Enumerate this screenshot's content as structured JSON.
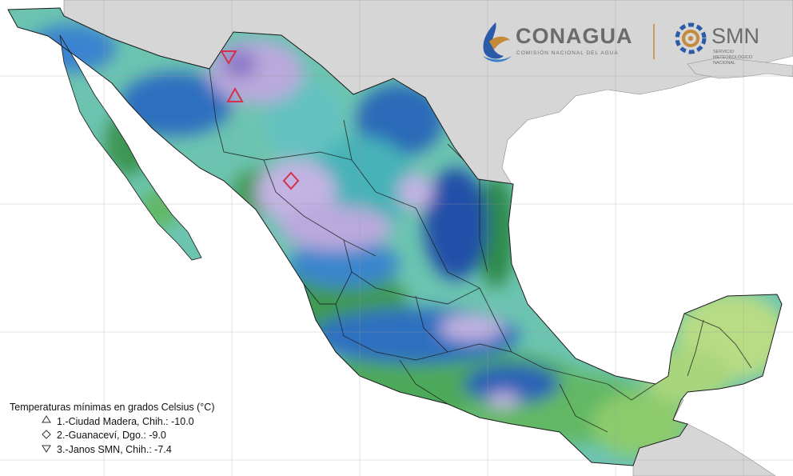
{
  "header": {
    "conagua_name": "CONAGUA",
    "conagua_sub": "COMISIÓN NACIONAL DEL AGUA",
    "smn_name": "SMN",
    "smn_sub_1": "SERVICIO",
    "smn_sub_2": "METEOROLÓGICO",
    "smn_sub_3": "NACIONAL"
  },
  "legend": {
    "title": "Temperaturas mínimas en grados Celsius (°C)",
    "items": [
      {
        "symbol": "triangle-up",
        "text": "1.-Ciudad Madera, Chih.: -10.0"
      },
      {
        "symbol": "diamond",
        "text": "2.-Guanaceví, Dgo.: -9.0"
      },
      {
        "symbol": "triangle-down",
        "text": "3.-Janos SMN, Chih.: -7.4"
      }
    ]
  },
  "colors": {
    "land_other": "#d6d6d6",
    "sea": "#ffffff",
    "marker": "#d6314a",
    "cold_lavender": "#b9a9dc",
    "blue_dark": "#2350a8",
    "teal": "#47b3b8",
    "green": "#3f9a53",
    "light_green": "#b8dc84"
  }
}
